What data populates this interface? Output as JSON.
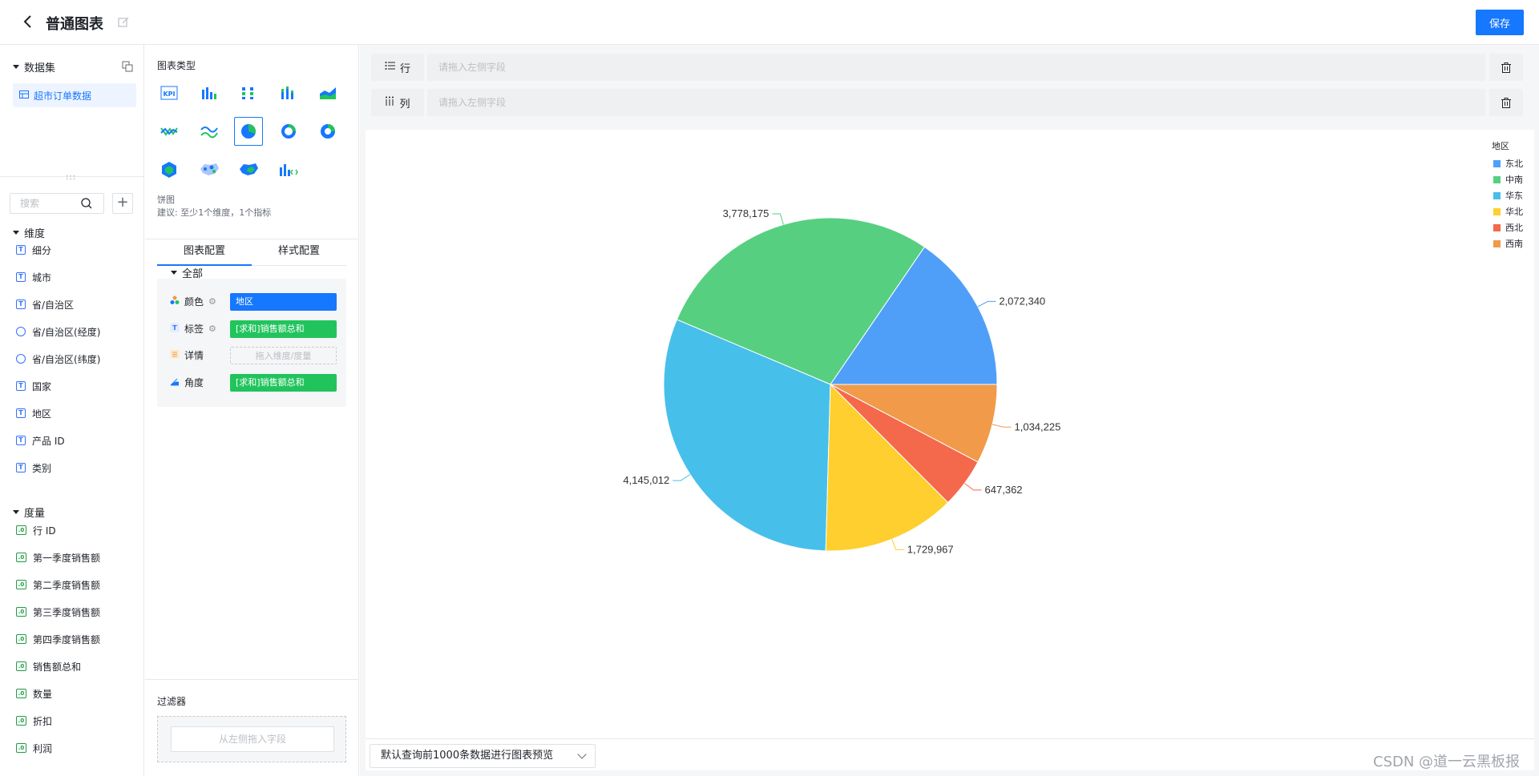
{
  "header": {
    "title": "普通图表",
    "save_label": "保存"
  },
  "dataset": {
    "section_title": "数据集",
    "item_label": "超市订单数据"
  },
  "fields": {
    "search_placeholder": "搜索",
    "dimensions_title": "维度",
    "dimensions": [
      {
        "label": "细分",
        "type": "text"
      },
      {
        "label": "城市",
        "type": "text"
      },
      {
        "label": "省/自治区",
        "type": "text"
      },
      {
        "label": "省/自治区(经度)",
        "type": "geo"
      },
      {
        "label": "省/自治区(纬度)",
        "type": "geo"
      },
      {
        "label": "国家",
        "type": "text"
      },
      {
        "label": "地区",
        "type": "text"
      },
      {
        "label": "产品 ID",
        "type": "text"
      },
      {
        "label": "类别",
        "type": "text"
      }
    ],
    "measures_title": "度量",
    "measures": [
      {
        "label": "行 ID"
      },
      {
        "label": "第一季度销售额"
      },
      {
        "label": "第二季度销售额"
      },
      {
        "label": "第三季度销售额"
      },
      {
        "label": "第四季度销售额"
      },
      {
        "label": "销售额总和"
      },
      {
        "label": "数量"
      },
      {
        "label": "折扣"
      },
      {
        "label": "利润"
      }
    ]
  },
  "chart_types": {
    "section_title": "图表类型",
    "items": [
      "kpi-icon",
      "bar-chart-icon",
      "dot-bar-icon",
      "stacked-bar-icon",
      "area-chart-icon",
      "multi-line-icon",
      "wave-line-icon",
      "pie-chart-icon",
      "donut-chart-icon",
      "ring-chart-icon",
      "hexagon-icon",
      "scatter-map-icon",
      "region-map-icon",
      "custom-chart-icon"
    ],
    "selected_index": 7,
    "selected_name": "饼图",
    "selected_hint": "建议: 至少1个维度，1个指标"
  },
  "config_tabs": {
    "chart_config": "图表配置",
    "style_config": "样式配置"
  },
  "config": {
    "group_title": "全部",
    "rows": [
      {
        "name": "颜色",
        "value": "地区",
        "style": "blue",
        "has_gear": true
      },
      {
        "name": "标签",
        "value": "[求和]销售额总和",
        "style": "green",
        "has_gear": true
      },
      {
        "name": "详情",
        "value": "拖入维度/度量",
        "style": "empty",
        "has_gear": false
      },
      {
        "name": "角度",
        "value": "[求和]销售额总和",
        "style": "green",
        "has_gear": false
      }
    ]
  },
  "filter": {
    "title": "过滤器",
    "drop_hint": "从左侧拖入字段"
  },
  "shelves": {
    "row_label": "行",
    "col_label": "列",
    "drop_hint": "请拖入左侧字段"
  },
  "chart_data": {
    "type": "pie",
    "legend_title": "地区",
    "legend_placement": "top-right",
    "categories": [
      "东北",
      "中南",
      "华东",
      "华北",
      "西北",
      "西南"
    ],
    "values": [
      2072340,
      3778175,
      4145012,
      1729967,
      647362,
      1034225
    ],
    "labels": [
      "2,072,340",
      "3,778,175",
      "4,145,012",
      "1,729,967",
      "647,362",
      "1,034,225"
    ],
    "colors": [
      "#4f9ff8",
      "#57cf81",
      "#47bfeb",
      "#fecf2e",
      "#f4684b",
      "#f09a4a"
    ]
  },
  "preview": {
    "label": "默认查询前1000条数据进行图表预览"
  },
  "watermark": "CSDN @道一云黑板报"
}
